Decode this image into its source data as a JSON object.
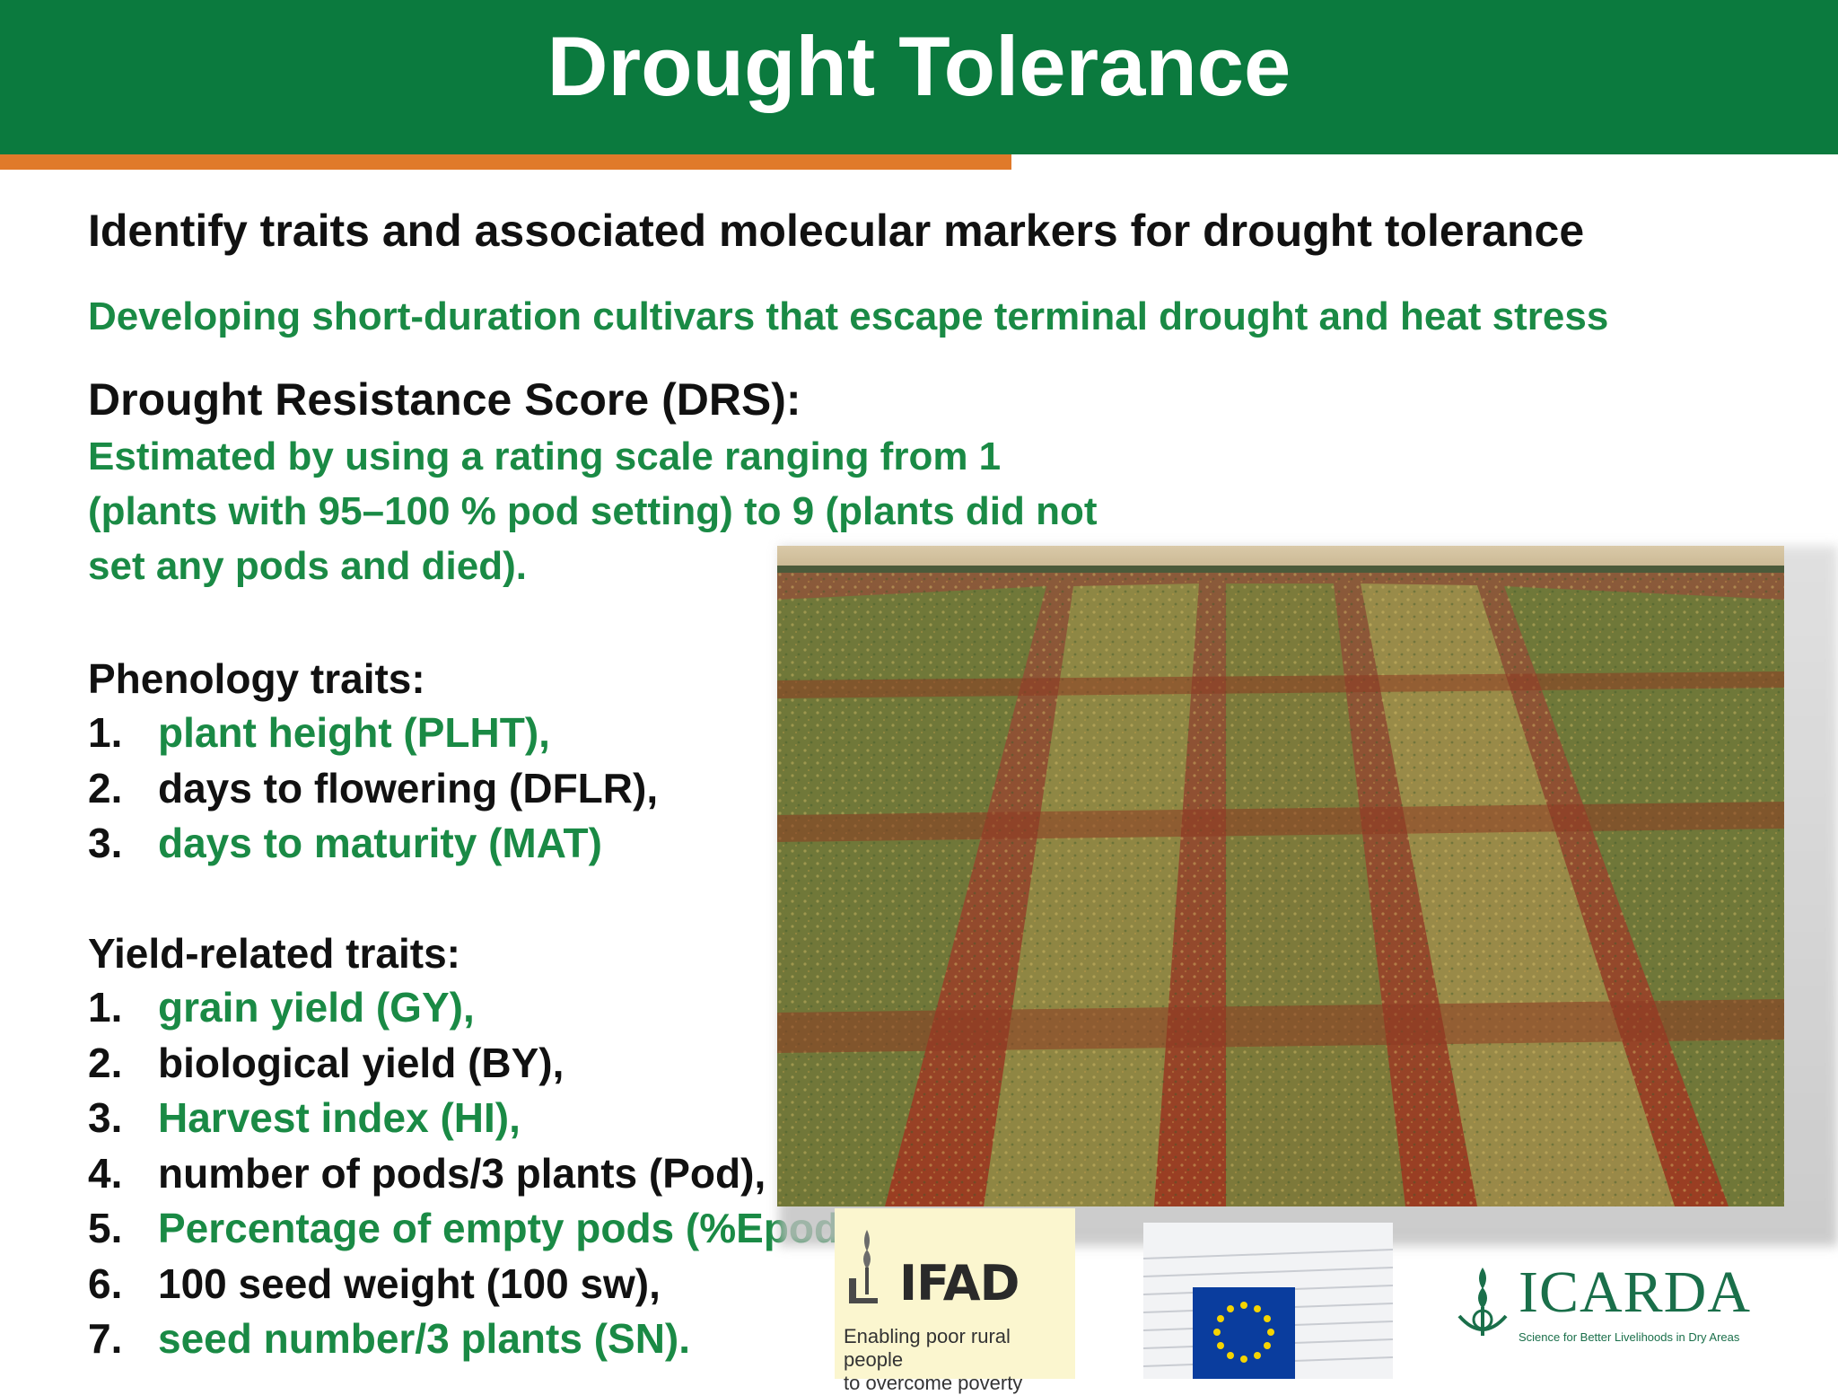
{
  "slide": {
    "title": "Drought Tolerance",
    "subheading": "Identify traits and associated molecular markers for drought tolerance",
    "green_line": "Developing short-duration cultivars that escape terminal drought and heat stress",
    "drs": {
      "title": "Drought Resistance Score (DRS):",
      "desc_lines": [
        "Estimated by using a rating scale ranging from 1",
        "(plants with 95–100 % pod setting) to 9 (plants did not",
        "set any pods and died)."
      ]
    },
    "phenology": {
      "title": "Phenology traits:",
      "items": [
        {
          "num": "1.",
          "label": "plant height (PLHT),"
        },
        {
          "num": "2.",
          "label": "days to flowering (DFLR),"
        },
        {
          "num": "3.",
          "label": "days to maturity (MAT)"
        }
      ]
    },
    "yield": {
      "title": "Yield-related traits:",
      "items": [
        {
          "num": "1.",
          "label": "grain yield (GY),"
        },
        {
          "num": "2.",
          "label": "biological yield (BY),"
        },
        {
          "num": "3.",
          "label": "Harvest index (HI),"
        },
        {
          "num": "4.",
          "label": "number of pods/3 plants (Pod),"
        },
        {
          "num": "5.",
          "label": "Percentage of empty pods (%Epod),"
        },
        {
          "num": "6.",
          "label": "100 seed weight (100 sw),"
        },
        {
          "num": "7.",
          "label": "seed number/3 plants (SN)."
        }
      ]
    }
  },
  "logos": {
    "ifad": {
      "word": "IFAD",
      "tagline_1": "Enabling poor rural people",
      "tagline_2": "to overcome poverty"
    },
    "eu": {
      "icon": "eu-flag-icon"
    },
    "icarda": {
      "word": "ICARDA",
      "tagline": "Science for Better Livelihoods in Dry Areas"
    }
  },
  "colors": {
    "header_green": "#0b7a3e",
    "accent_orange": "#e07a2a",
    "text_green": "#1a8a45",
    "text_black": "#111111"
  }
}
